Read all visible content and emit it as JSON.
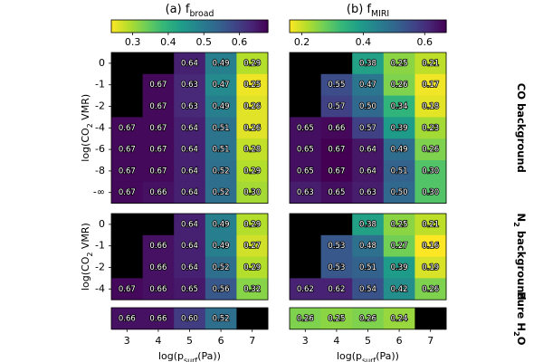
{
  "chart_data": [
    {
      "type": "heatmap",
      "title": "(a) f",
      "title_sub": "broad",
      "colormap": "viridis_r",
      "clim": [
        0.24,
        0.68
      ],
      "cticks": [
        0.3,
        0.4,
        0.5,
        0.6
      ],
      "x": [
        3,
        4,
        5,
        6,
        7
      ],
      "xlabel": "log(p",
      "xlabel_sub": "surf",
      "xlabel_end": "(Pa))",
      "panels": [
        {
          "ylabel": "log(CO",
          "ylabel_sub": "2",
          "ylabel_end": " VMR)",
          "y": [
            "0",
            "-1",
            "-2",
            "-4",
            "-6",
            "-8",
            "-∞"
          ],
          "values": [
            [
              null,
              null,
              0.64,
              0.49,
              0.29
            ],
            [
              null,
              0.67,
              0.63,
              0.47,
              0.25
            ],
            [
              null,
              0.67,
              0.63,
              0.49,
              0.26
            ],
            [
              0.67,
              0.67,
              0.64,
              0.51,
              0.26
            ],
            [
              0.67,
              0.67,
              0.64,
              0.51,
              0.28
            ],
            [
              0.67,
              0.67,
              0.64,
              0.52,
              0.29
            ],
            [
              0.67,
              0.66,
              0.64,
              0.52,
              0.3
            ]
          ],
          "value_labels": [
            [
              null,
              null,
              "0.64",
              "0.49",
              "0.29"
            ],
            [
              null,
              "0.67",
              "0.63",
              "0.47",
              "0.25"
            ],
            [
              null,
              "0.67",
              "0.63",
              "0.49",
              "0.26"
            ],
            [
              "0.67",
              "0.67",
              "0.64",
              "0.51",
              "0.26"
            ],
            [
              "0.67",
              "0.67",
              "0.64",
              "0.51",
              "0.28"
            ],
            [
              "0.67",
              "0.67",
              "0.64",
              "0.52",
              "0.29"
            ],
            [
              "0.67",
              "0.66",
              "0.64",
              "0.52",
              "0.30"
            ]
          ]
        },
        {
          "ylabel": "log(CO",
          "ylabel_sub": "2",
          "ylabel_end": " VMR)",
          "y": [
            "0",
            "-1",
            "-2",
            "-4"
          ],
          "values": [
            [
              null,
              null,
              0.64,
              0.49,
              0.29
            ],
            [
              null,
              0.66,
              0.64,
              0.49,
              0.27
            ],
            [
              null,
              0.66,
              0.64,
              0.52,
              0.29
            ],
            [
              0.67,
              0.66,
              0.65,
              0.56,
              0.32
            ]
          ],
          "value_labels": [
            [
              null,
              null,
              "0.64",
              "0.49",
              "0.29"
            ],
            [
              null,
              "0.66",
              "0.64",
              "0.49",
              "0.27"
            ],
            [
              null,
              "0.66",
              "0.64",
              "0.52",
              "0.29"
            ],
            [
              "0.67",
              "0.66",
              "0.65",
              "0.56",
              "0.32"
            ]
          ]
        },
        {
          "values": [
            [
              0.66,
              0.66,
              0.6,
              0.52,
              null
            ]
          ],
          "value_labels": [
            [
              "0.66",
              "0.66",
              "0.60",
              "0.52",
              null
            ]
          ]
        }
      ]
    },
    {
      "type": "heatmap",
      "title": "(b) f",
      "title_sub": "MIRI",
      "colormap": "viridis_r",
      "clim": [
        0.16,
        0.67
      ],
      "cticks": [
        0.2,
        0.4,
        0.6
      ],
      "x": [
        3,
        4,
        5,
        6,
        7
      ],
      "xlabel": "log(p",
      "xlabel_sub": "surf",
      "xlabel_end": "(Pa))",
      "panels": [
        {
          "side_label": "CO background",
          "values": [
            [
              null,
              null,
              0.38,
              0.25,
              0.21
            ],
            [
              null,
              0.55,
              0.47,
              0.26,
              0.17
            ],
            [
              null,
              0.57,
              0.5,
              0.34,
              0.18
            ],
            [
              0.65,
              0.66,
              0.57,
              0.39,
              0.23
            ],
            [
              0.65,
              0.67,
              0.64,
              0.49,
              0.26
            ],
            [
              0.65,
              0.67,
              0.64,
              0.51,
              0.3
            ],
            [
              0.63,
              0.65,
              0.63,
              0.5,
              0.3
            ]
          ],
          "value_labels": [
            [
              null,
              null,
              "0.38",
              "0.25",
              "0.21"
            ],
            [
              null,
              "0.55",
              "0.47",
              "0.26",
              "0.17"
            ],
            [
              null,
              "0.57",
              "0.50",
              "0.34",
              "0.18"
            ],
            [
              "0.65",
              "0.66",
              "0.57",
              "0.39",
              "0.23"
            ],
            [
              "0.65",
              "0.67",
              "0.64",
              "0.49",
              "0.26"
            ],
            [
              "0.65",
              "0.67",
              "0.64",
              "0.51",
              "0.30"
            ],
            [
              "0.63",
              "0.65",
              "0.63",
              "0.50",
              "0.30"
            ]
          ]
        },
        {
          "side_label": "N",
          "side_label_sub": "2",
          "side_label_end": " background",
          "values": [
            [
              null,
              null,
              0.38,
              0.25,
              0.21
            ],
            [
              null,
              0.53,
              0.48,
              0.27,
              0.16
            ],
            [
              null,
              0.53,
              0.51,
              0.39,
              0.19
            ],
            [
              0.62,
              0.62,
              0.54,
              0.42,
              0.26
            ]
          ],
          "value_labels": [
            [
              null,
              null,
              "0.38",
              "0.25",
              "0.21"
            ],
            [
              null,
              "0.53",
              "0.48",
              "0.27",
              "0.16"
            ],
            [
              null,
              "0.53",
              "0.51",
              "0.39",
              "0.19"
            ],
            [
              "0.62",
              "0.62",
              "0.54",
              "0.42",
              "0.26"
            ]
          ]
        },
        {
          "side_label": "Pure H",
          "side_label_sub": "2",
          "side_label_end": "O",
          "values": [
            [
              0.26,
              0.25,
              0.26,
              0.24,
              null
            ]
          ],
          "value_labels": [
            [
              "0.26",
              "0.25",
              "0.26",
              "0.24",
              null
            ]
          ]
        }
      ]
    }
  ]
}
